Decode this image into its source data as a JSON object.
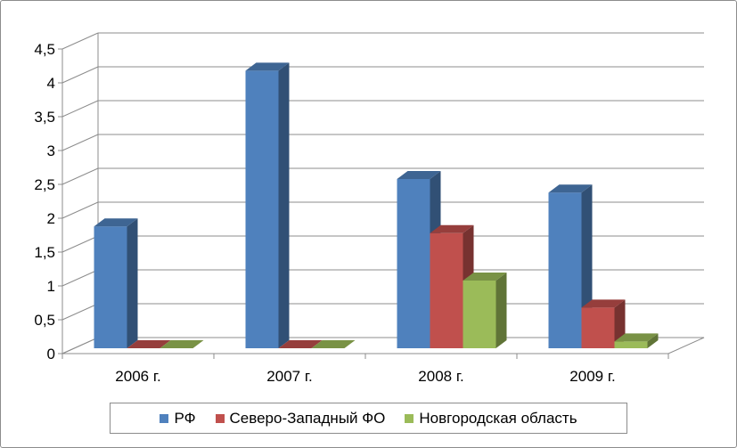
{
  "chart_data": {
    "type": "bar",
    "categories": [
      "2006 г.",
      "2007 г.",
      "2008 г.",
      "2009 г."
    ],
    "series": [
      {
        "name": "РФ",
        "values": [
          1.8,
          4.1,
          2.5,
          2.3
        ],
        "color": "#4f81bd"
      },
      {
        "name": "Северо-Западный ФО",
        "values": [
          0,
          0,
          1.7,
          0.6
        ],
        "color": "#c0504d"
      },
      {
        "name": "Новгородская область",
        "values": [
          0,
          0,
          1.0,
          0.1
        ],
        "color": "#9bbb59"
      }
    ],
    "yticks": [
      "0",
      "0,5",
      "1",
      "1,5",
      "2",
      "2,5",
      "3",
      "3,5",
      "4",
      "4,5"
    ],
    "ylim": [
      0,
      4.5
    ],
    "grid": true,
    "legend_position": "bottom",
    "style": "3d-clustered-column"
  }
}
